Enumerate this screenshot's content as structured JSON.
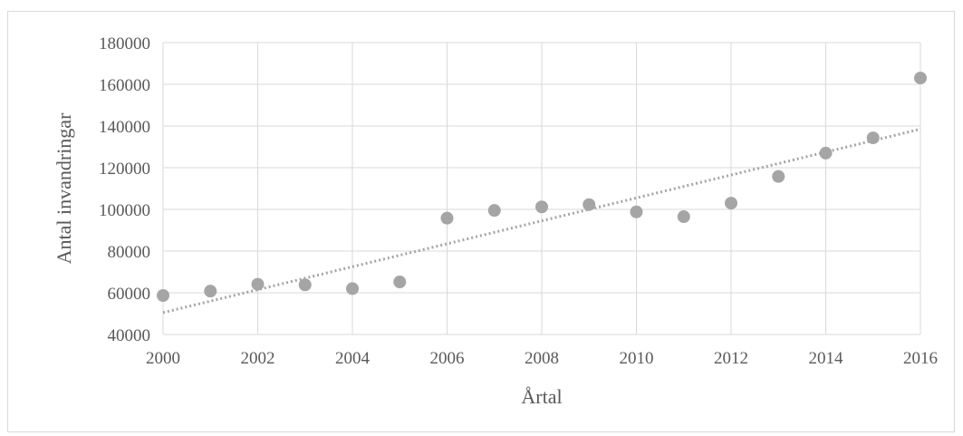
{
  "chart_data": {
    "type": "scatter",
    "title": "",
    "xlabel": "Årtal",
    "ylabel": "Antal invandringar",
    "xlim": [
      2000,
      2016
    ],
    "ylim": [
      40000,
      180000
    ],
    "x_ticks": [
      "2000",
      "2002",
      "2004",
      "2006",
      "2008",
      "2010",
      "2012",
      "2014",
      "2016"
    ],
    "y_ticks": [
      "40000",
      "60000",
      "80000",
      "100000",
      "120000",
      "140000",
      "160000",
      "180000"
    ],
    "grid": true,
    "legend": "none",
    "series": [
      {
        "x": [
          2000,
          2001,
          2002,
          2003,
          2004,
          2005,
          2006,
          2007,
          2008,
          2009,
          2010,
          2011,
          2012,
          2013,
          2014,
          2015,
          2016
        ],
        "y": [
          58700,
          60800,
          64100,
          63800,
          62000,
          65200,
          95800,
          99500,
          101200,
          102300,
          98800,
          96500,
          103000,
          115800,
          127000,
          134300,
          163000
        ],
        "color": "#a5a5a5"
      }
    ],
    "trendline": {
      "type": "linear",
      "x": [
        2000,
        2016
      ],
      "y": [
        50500,
        138500
      ],
      "color": "#a5a5a5",
      "style": "dotted"
    }
  }
}
